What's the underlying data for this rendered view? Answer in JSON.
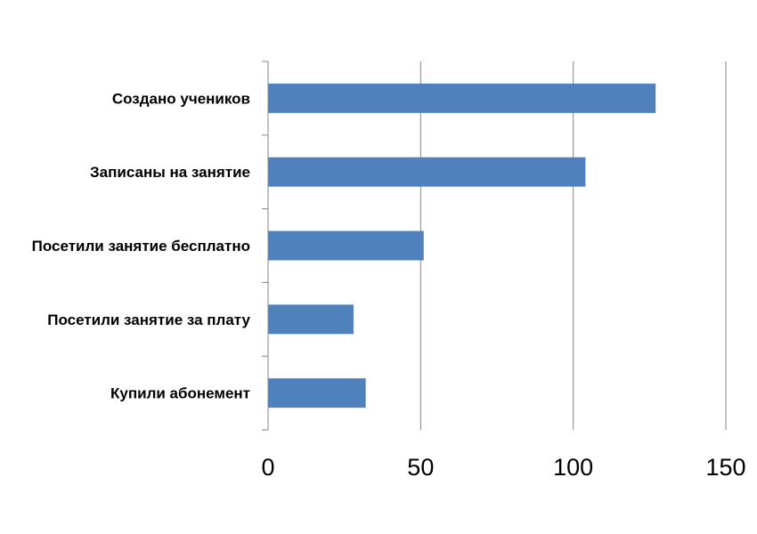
{
  "chart_data": {
    "type": "bar",
    "orientation": "horizontal",
    "title": "",
    "xlabel": "",
    "ylabel": "",
    "categories": [
      "Создано учеников",
      "Записаны на занятие",
      "Посетили занятие бесплатно",
      "Посетили занятие за плату",
      "Купили абонемент"
    ],
    "values": [
      127,
      104,
      51,
      28,
      32
    ],
    "xlim": [
      0,
      150
    ],
    "xticks": [
      0,
      50,
      100,
      150
    ],
    "tick_labels": [
      "0",
      "50",
      "100",
      "150"
    ],
    "grid": "vertical",
    "legend": "none",
    "colors": {
      "bar": "#4f81bd",
      "grid": "#868686",
      "axis": "#868686"
    }
  }
}
